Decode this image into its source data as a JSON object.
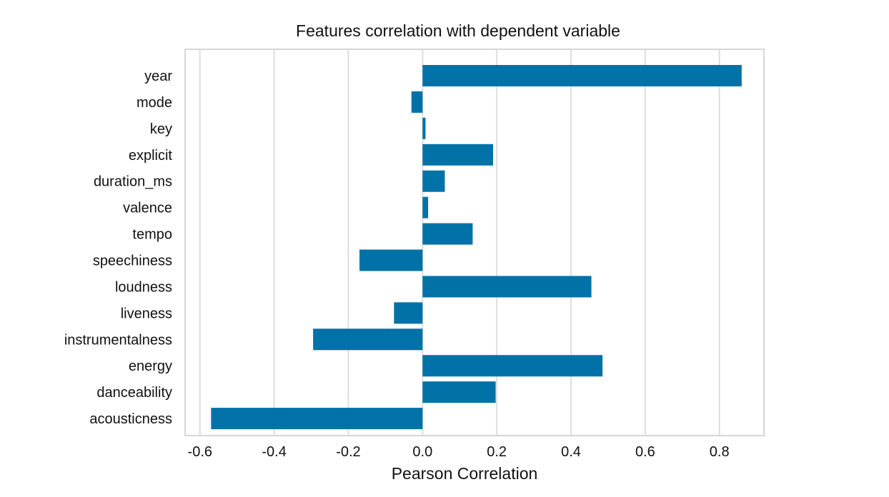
{
  "chart_data": {
    "type": "bar",
    "orientation": "horizontal",
    "title": "Features correlation with dependent variable",
    "xlabel": "Pearson Correlation",
    "ylabel": "",
    "xlim": [
      -0.64,
      0.92
    ],
    "xticks": [
      -0.6,
      -0.4,
      -0.2,
      0.0,
      0.2,
      0.4,
      0.6,
      0.8
    ],
    "xtick_labels": [
      "-0.6",
      "-0.4",
      "-0.2",
      "0.0",
      "0.2",
      "0.4",
      "0.6",
      "0.8"
    ],
    "grid": true,
    "bar_color": "#0072a8",
    "categories": [
      "year",
      "mode",
      "key",
      "explicit",
      "duration_ms",
      "valence",
      "tempo",
      "speechiness",
      "loudness",
      "liveness",
      "instrumentalness",
      "energy",
      "danceability",
      "acousticness"
    ],
    "values": [
      0.86,
      -0.03,
      0.008,
      0.19,
      0.06,
      0.015,
      0.135,
      -0.17,
      0.455,
      -0.077,
      -0.295,
      0.485,
      0.197,
      -0.57
    ]
  }
}
